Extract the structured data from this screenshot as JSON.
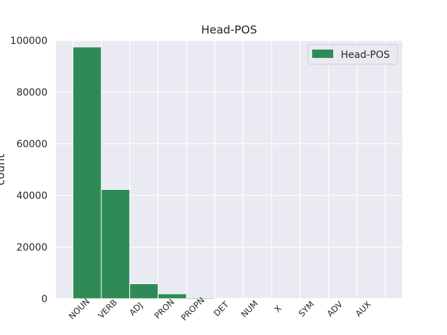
{
  "chart_data": {
    "type": "bar",
    "title": "Head-POS",
    "xlabel": "",
    "ylabel": "count",
    "categories": [
      "NOUN",
      "VERB",
      "ADJ",
      "PRON",
      "PROPN",
      "DET",
      "NUM",
      "X",
      "SYM",
      "ADV",
      "AUX"
    ],
    "series": [
      {
        "name": "Head-POS",
        "values": [
          97500,
          42300,
          5800,
          1900,
          400,
          120,
          80,
          40,
          20,
          10,
          5
        ]
      }
    ],
    "ylim": [
      0,
      100000
    ],
    "yticks": [
      "0",
      "20000",
      "40000",
      "60000",
      "80000",
      "100000"
    ],
    "grid": true,
    "legend_position": "top-right",
    "colors": {
      "bar": "#2e8b57",
      "plot_background": "#eaeaf2",
      "grid": "#ffffff"
    }
  }
}
